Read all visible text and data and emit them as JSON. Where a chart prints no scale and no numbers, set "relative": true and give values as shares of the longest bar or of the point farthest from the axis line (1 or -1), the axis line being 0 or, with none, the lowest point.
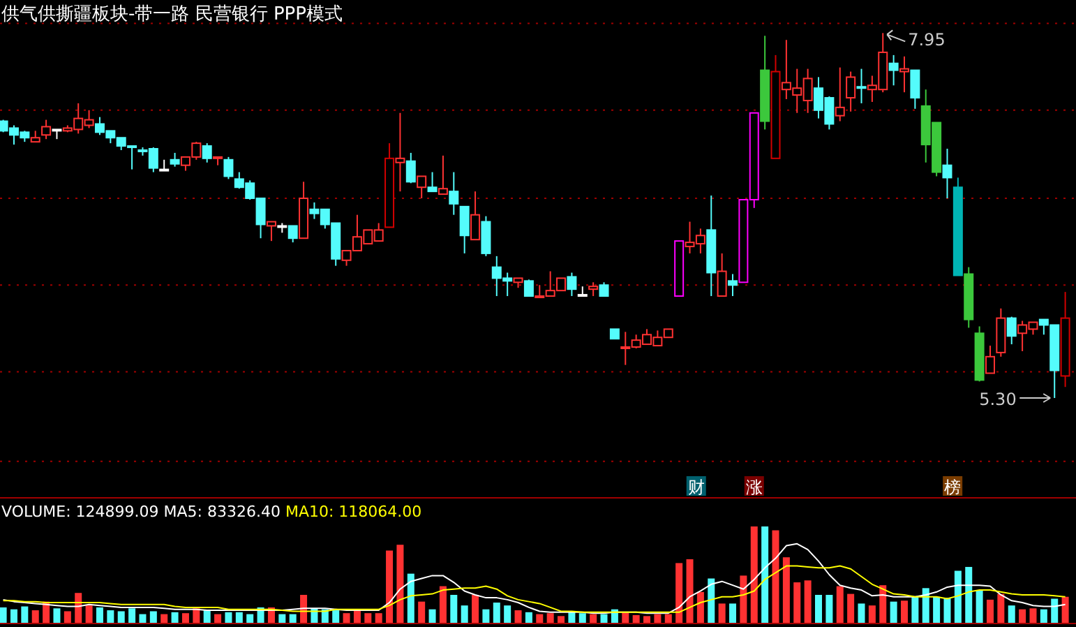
{
  "chart_data": [
    {
      "type": "candlestick",
      "title": "供气供撕疆板块-带一路 民营银行 PPP模式",
      "categories": [
        null,
        null,
        null,
        null,
        null,
        null,
        null,
        null,
        null,
        null,
        null,
        null,
        null,
        null,
        null,
        null,
        null,
        null,
        null,
        null,
        null,
        null,
        null,
        null,
        null,
        null,
        null,
        null,
        null,
        null,
        null,
        null,
        null,
        null,
        null,
        null,
        null,
        null,
        null,
        null,
        null,
        null,
        null,
        null,
        null,
        null,
        null,
        null,
        null,
        null,
        null,
        null,
        null,
        null,
        null,
        null,
        null,
        null,
        null,
        null,
        null,
        null,
        null,
        null,
        null,
        null,
        null,
        null,
        null,
        null,
        null,
        null,
        null,
        null,
        null,
        null,
        null,
        null,
        null,
        null,
        null,
        null,
        null,
        null,
        null,
        null,
        null,
        null,
        null,
        null,
        null,
        null,
        null,
        null,
        null,
        null,
        null,
        null,
        null,
        null
      ],
      "ohlc": [
        [
          7.31,
          7.32,
          7.23,
          7.24
        ],
        [
          7.26,
          7.28,
          7.14,
          7.21
        ],
        [
          7.23,
          7.24,
          7.16,
          7.19
        ],
        [
          7.16,
          7.24,
          7.16,
          7.19
        ],
        [
          7.21,
          7.32,
          7.18,
          7.27
        ],
        [
          7.25,
          7.25,
          7.18,
          7.25
        ],
        [
          7.24,
          7.28,
          7.23,
          7.26
        ],
        [
          7.25,
          7.44,
          7.22,
          7.33
        ],
        [
          7.28,
          7.39,
          7.26,
          7.32
        ],
        [
          7.29,
          7.34,
          7.21,
          7.23
        ],
        [
          7.24,
          7.24,
          7.15,
          7.19
        ],
        [
          7.19,
          7.19,
          7.1,
          7.13
        ],
        [
          7.13,
          7.13,
          6.96,
          7.12
        ],
        [
          7.1,
          7.12,
          7.06,
          7.09
        ],
        [
          7.11,
          7.12,
          6.94,
          6.97
        ],
        [
          6.96,
          7.03,
          6.95,
          6.96
        ],
        [
          7.03,
          7.08,
          6.98,
          7.0
        ],
        [
          6.99,
          7.05,
          6.95,
          7.05
        ],
        [
          7.05,
          7.16,
          7.03,
          7.15
        ],
        [
          7.13,
          7.15,
          7.01,
          7.04
        ],
        [
          7.04,
          7.05,
          6.99,
          7.05
        ],
        [
          7.03,
          7.05,
          6.89,
          6.91
        ],
        [
          6.89,
          6.94,
          6.82,
          6.83
        ],
        [
          6.86,
          6.88,
          6.74,
          6.75
        ],
        [
          6.75,
          6.75,
          6.46,
          6.56
        ],
        [
          6.55,
          6.58,
          6.44,
          6.58
        ],
        [
          6.55,
          6.57,
          6.5,
          6.55
        ],
        [
          6.55,
          6.55,
          6.43,
          6.46
        ],
        [
          6.46,
          6.87,
          6.46,
          6.75
        ],
        [
          6.67,
          6.72,
          6.6,
          6.64
        ],
        [
          6.67,
          6.67,
          6.53,
          6.56
        ],
        [
          6.57,
          6.57,
          6.26,
          6.31
        ],
        [
          6.3,
          6.37,
          6.26,
          6.37
        ],
        [
          6.37,
          6.63,
          6.37,
          6.47
        ],
        [
          6.42,
          6.52,
          6.42,
          6.52
        ],
        [
          6.44,
          6.57,
          6.44,
          6.52
        ],
        [
          6.54,
          7.15,
          6.54,
          7.04
        ],
        [
          7.01,
          7.37,
          6.8,
          7.04
        ],
        [
          7.02,
          7.08,
          6.86,
          6.87
        ],
        [
          6.83,
          6.91,
          6.75,
          6.91
        ],
        [
          6.83,
          6.94,
          6.8,
          6.8
        ],
        [
          6.78,
          7.06,
          6.78,
          6.82
        ],
        [
          6.8,
          6.94,
          6.63,
          6.71
        ],
        [
          6.69,
          6.69,
          6.35,
          6.48
        ],
        [
          6.45,
          6.8,
          6.45,
          6.63
        ],
        [
          6.58,
          6.62,
          6.33,
          6.35
        ],
        [
          6.25,
          6.33,
          6.04,
          6.17
        ],
        [
          6.17,
          6.21,
          6.04,
          6.15
        ],
        [
          6.14,
          6.17,
          6.1,
          6.17
        ],
        [
          6.15,
          6.16,
          6.04,
          6.04
        ],
        [
          6.04,
          6.12,
          6.04,
          6.04
        ],
        [
          6.04,
          6.22,
          6.04,
          6.08
        ],
        [
          6.08,
          6.17,
          6.08,
          6.17
        ],
        [
          6.18,
          6.21,
          6.04,
          6.09
        ],
        [
          6.05,
          6.11,
          6.04,
          6.05
        ],
        [
          6.09,
          6.14,
          6.04,
          6.11
        ],
        [
          6.12,
          6.14,
          6.04,
          6.04
        ],
        [
          5.8,
          5.8,
          5.73,
          5.73
        ],
        [
          5.66,
          5.78,
          5.54,
          5.67
        ],
        [
          5.67,
          5.76,
          5.66,
          5.72
        ],
        [
          5.69,
          5.8,
          5.69,
          5.76
        ],
        [
          5.68,
          5.79,
          5.68,
          5.74
        ],
        [
          5.74,
          5.8,
          5.74,
          5.8
        ],
        [
          6.04,
          6.44,
          6.04,
          6.44
        ],
        [
          6.4,
          6.58,
          6.35,
          6.43
        ],
        [
          6.42,
          6.53,
          6.35,
          6.48
        ],
        [
          6.52,
          6.77,
          6.04,
          6.21
        ],
        [
          6.04,
          6.35,
          6.04,
          6.22
        ],
        [
          6.15,
          6.2,
          6.04,
          6.12
        ],
        [
          6.14,
          6.74,
          6.14,
          6.74
        ],
        [
          6.74,
          7.37,
          6.68,
          7.37
        ],
        [
          7.68,
          7.93,
          7.25,
          7.31
        ],
        [
          7.04,
          7.79,
          7.04,
          7.67
        ],
        [
          7.54,
          7.9,
          7.47,
          7.59
        ],
        [
          7.5,
          7.69,
          7.37,
          7.55
        ],
        [
          7.46,
          7.69,
          7.37,
          7.62
        ],
        [
          7.55,
          7.63,
          7.33,
          7.39
        ],
        [
          7.48,
          7.49,
          7.25,
          7.29
        ],
        [
          7.35,
          7.7,
          7.31,
          7.41
        ],
        [
          7.48,
          7.67,
          7.38,
          7.63
        ],
        [
          7.56,
          7.69,
          7.44,
          7.56
        ],
        [
          7.54,
          7.64,
          7.45,
          7.57
        ],
        [
          7.54,
          7.95,
          7.52,
          7.81
        ],
        [
          7.73,
          7.79,
          7.57,
          7.68
        ],
        [
          7.67,
          7.78,
          7.52,
          7.69
        ],
        [
          7.68,
          7.68,
          7.4,
          7.48
        ],
        [
          7.42,
          7.54,
          7.01,
          7.14
        ],
        [
          7.3,
          7.3,
          6.91,
          6.94
        ],
        [
          6.99,
          7.11,
          6.75,
          6.9
        ],
        [
          6.83,
          6.9,
          6.19,
          6.19
        ],
        [
          6.2,
          6.25,
          5.81,
          5.87
        ],
        [
          5.77,
          5.82,
          5.42,
          5.43
        ],
        [
          5.48,
          5.68,
          5.48,
          5.6
        ],
        [
          5.63,
          5.95,
          5.6,
          5.88
        ],
        [
          5.88,
          5.89,
          5.69,
          5.75
        ],
        [
          5.77,
          5.86,
          5.64,
          5.83
        ],
        [
          5.8,
          5.85,
          5.76,
          5.85
        ],
        [
          5.87,
          5.87,
          5.76,
          5.83
        ],
        [
          5.83,
          5.83,
          5.3,
          5.5
        ],
        [
          5.46,
          6.07,
          5.38,
          5.88
        ]
      ],
      "colors": [
        "#54fcfc",
        "#54fcfc",
        "#54fcfc",
        "#ff3232",
        "#ff3232",
        "#ffffff",
        "#ff3232",
        "#ff3232",
        "#ff3232",
        "#54fcfc",
        "#54fcfc",
        "#54fcfc",
        "#54fcfc",
        "#54fcfc",
        "#54fcfc",
        "#ffffff",
        "#54fcfc",
        "#ff3232",
        "#ff3232",
        "#54fcfc",
        "#ff3232",
        "#54fcfc",
        "#54fcfc",
        "#54fcfc",
        "#54fcfc",
        "#ff3232",
        "#ffffff",
        "#54fcfc",
        "#ff3232",
        "#54fcfc",
        "#54fcfc",
        "#54fcfc",
        "#ff3232",
        "#ff3232",
        "#ff3232",
        "#ff3232",
        "#d20000",
        "#ff3232",
        "#54fcfc",
        "#ff3232",
        "#54fcfc",
        "#ff3232",
        "#54fcfc",
        "#54fcfc",
        "#ff3232",
        "#54fcfc",
        "#54fcfc",
        "#54fcfc",
        "#ff3232",
        "#54fcfc",
        "#ff3232",
        "#ff3232",
        "#ff3232",
        "#54fcfc",
        "#ffffff",
        "#ff3232",
        "#54fcfc",
        "#54fcfc",
        "#ff3232",
        "#ff3232",
        "#ff3232",
        "#ff3232",
        "#ff3232",
        "#ff00ff",
        "#ff3232",
        "#ff3232",
        "#54fcfc",
        "#ff3232",
        "#54fcfc",
        "#ff00ff",
        "#ff00ff",
        "#3cc83c",
        "#d20000",
        "#ff3232",
        "#ff3232",
        "#ff3232",
        "#54fcfc",
        "#54fcfc",
        "#ff3232",
        "#ff3232",
        "#54fcfc",
        "#ff3232",
        "#ff3232",
        "#54fcfc",
        "#ff3232",
        "#54fcfc",
        "#3cc83c",
        "#3cc83c",
        "#54fcfc",
        "#00b4b4",
        "#3cc83c",
        "#3cc83c",
        "#ff3232",
        "#ff3232",
        "#54fcfc",
        "#ff3232",
        "#ff3232",
        "#54fcfc",
        "#54fcfc",
        "#d20000"
      ],
      "ylim": [
        4.58,
        8.19
      ],
      "yticks": [
        {
          "value": 8.02,
          "label": null
        },
        {
          "value": 7.39,
          "label": null
        },
        {
          "value": 6.75,
          "label": null
        },
        {
          "value": 6.12,
          "label": null
        },
        {
          "value": 5.49,
          "label": null
        },
        {
          "value": 4.84,
          "label": null
        }
      ],
      "grid": true,
      "annotations": [
        "7.95",
        "5.30",
        "财",
        "涨",
        "榜"
      ]
    },
    {
      "type": "bar",
      "relative": true,
      "categories": [
        null,
        null,
        null,
        null,
        null,
        null,
        null,
        null,
        null,
        null,
        null,
        null,
        null,
        null,
        null,
        null,
        null,
        null,
        null,
        null,
        null,
        null,
        null,
        null,
        null,
        null,
        null,
        null,
        null,
        null,
        null,
        null,
        null,
        null,
        null,
        null,
        null,
        null,
        null,
        null,
        null,
        null,
        null,
        null,
        null,
        null,
        null,
        null,
        null,
        null,
        null,
        null,
        null,
        null,
        null,
        null,
        null,
        null,
        null,
        null,
        null,
        null,
        null,
        null,
        null,
        null,
        null,
        null,
        null,
        null,
        null,
        null,
        null,
        null,
        null,
        null,
        null,
        null,
        null,
        null,
        null,
        null,
        null,
        null,
        null,
        null,
        null,
        null,
        null,
        null,
        null,
        null,
        null,
        null,
        null,
        null,
        null,
        null,
        null,
        null
      ],
      "series": [
        {
          "name": "VOLUME:",
          "values": [
            0.16,
            0.14,
            0.17,
            0.13,
            0.22,
            0.15,
            0.12,
            0.31,
            0.18,
            0.16,
            0.13,
            0.12,
            0.15,
            0.09,
            0.12,
            0.09,
            0.11,
            0.1,
            0.15,
            0.13,
            0.09,
            0.11,
            0.11,
            0.09,
            0.16,
            0.16,
            0.09,
            0.09,
            0.29,
            0.15,
            0.14,
            0.13,
            0.1,
            0.13,
            0.1,
            0.1,
            0.75,
            0.81,
            0.51,
            0.22,
            0.14,
            0.38,
            0.29,
            0.18,
            0.29,
            0.14,
            0.21,
            0.18,
            0.13,
            0.11,
            0.09,
            0.1,
            0.07,
            0.11,
            0.1,
            0.09,
            0.09,
            0.14,
            0.11,
            0.08,
            0.07,
            0.09,
            0.09,
            0.62,
            0.66,
            0.32,
            0.46,
            0.2,
            0.2,
            0.49,
            1,
            1,
            0.96,
            0.68,
            0.42,
            0.44,
            0.29,
            0.29,
            0.38,
            0.3,
            0.2,
            0.18,
            0.39,
            0.22,
            0.23,
            0.27,
            0.36,
            0.27,
            0.26,
            0.54,
            0.58,
            0.34,
            0.24,
            0.3,
            0.18,
            0.14,
            0.15,
            0.14,
            0.25,
            0.27
          ],
          "colors": [
            "#54fcfc",
            "#54fcfc",
            "#54fcfc",
            "#ff3232",
            "#ff3232",
            "#54fcfc",
            "#ff3232",
            "#ff3232",
            "#ff3232",
            "#54fcfc",
            "#54fcfc",
            "#54fcfc",
            "#54fcfc",
            "#54fcfc",
            "#54fcfc",
            "#ff3232",
            "#54fcfc",
            "#ff3232",
            "#ff3232",
            "#54fcfc",
            "#ff3232",
            "#54fcfc",
            "#54fcfc",
            "#54fcfc",
            "#54fcfc",
            "#ff3232",
            "#54fcfc",
            "#54fcfc",
            "#ff3232",
            "#54fcfc",
            "#54fcfc",
            "#54fcfc",
            "#ff3232",
            "#ff3232",
            "#ff3232",
            "#ff3232",
            "#ff3232",
            "#ff3232",
            "#54fcfc",
            "#ff3232",
            "#54fcfc",
            "#ff3232",
            "#54fcfc",
            "#54fcfc",
            "#ff3232",
            "#54fcfc",
            "#54fcfc",
            "#54fcfc",
            "#ff3232",
            "#54fcfc",
            "#ff3232",
            "#ff3232",
            "#ff3232",
            "#54fcfc",
            "#54fcfc",
            "#ff3232",
            "#54fcfc",
            "#54fcfc",
            "#ff3232",
            "#ff3232",
            "#ff3232",
            "#ff3232",
            "#ff3232",
            "#ff3232",
            "#ff3232",
            "#ff3232",
            "#54fcfc",
            "#ff3232",
            "#54fcfc",
            "#ff3232",
            "#ff3232",
            "#54fcfc",
            "#ff3232",
            "#ff3232",
            "#ff3232",
            "#ff3232",
            "#54fcfc",
            "#54fcfc",
            "#ff3232",
            "#ff3232",
            "#54fcfc",
            "#ff3232",
            "#ff3232",
            "#54fcfc",
            "#ff3232",
            "#54fcfc",
            "#54fcfc",
            "#54fcfc",
            "#54fcfc",
            "#54fcfc",
            "#54fcfc",
            "#54fcfc",
            "#ff3232",
            "#ff3232",
            "#54fcfc",
            "#ff3232",
            "#ff3232",
            "#54fcfc",
            "#54fcfc",
            "#ff3232"
          ]
        },
        {
          "name": "MA5:",
          "type": "line",
          "color": "#ffffff",
          "values": [
            0.24,
            0.22,
            0.21,
            0.2,
            0.19,
            0.18,
            0.17,
            0.17,
            0.19,
            0.18,
            0.17,
            0.16,
            0.16,
            0.16,
            0.16,
            0.15,
            0.14,
            0.14,
            0.14,
            0.13,
            0.13,
            0.13,
            0.13,
            0.13,
            0.13,
            0.13,
            0.13,
            0.14,
            0.15,
            0.15,
            0.15,
            0.14,
            0.13,
            0.13,
            0.13,
            0.13,
            0.21,
            0.35,
            0.43,
            0.46,
            0.49,
            0.49,
            0.42,
            0.33,
            0.29,
            0.26,
            0.26,
            0.24,
            0.21,
            0.16,
            0.12,
            0.11,
            0.11,
            0.11,
            0.11,
            0.1,
            0.1,
            0.11,
            0.11,
            0.11,
            0.1,
            0.1,
            0.1,
            0.16,
            0.27,
            0.33,
            0.4,
            0.43,
            0.39,
            0.35,
            0.45,
            0.57,
            0.67,
            0.8,
            0.82,
            0.76,
            0.64,
            0.5,
            0.39,
            0.36,
            0.34,
            0.28,
            0.29,
            0.27,
            0.27,
            0.27,
            0.29,
            0.32,
            0.37,
            0.39,
            0.39,
            0.39,
            0.38,
            0.29,
            0.23,
            0.21,
            0.18,
            0.17,
            0.17,
            0.19
          ]
        },
        {
          "name": "MA10:",
          "type": "line",
          "color": "#ffff00",
          "values": [
            0.23,
            0.23,
            0.22,
            0.22,
            0.21,
            0.21,
            0.21,
            0.21,
            0.21,
            0.21,
            0.2,
            0.19,
            0.19,
            0.19,
            0.19,
            0.19,
            0.17,
            0.16,
            0.16,
            0.16,
            0.16,
            0.14,
            0.14,
            0.14,
            0.14,
            0.14,
            0.13,
            0.12,
            0.12,
            0.12,
            0.12,
            0.14,
            0.14,
            0.14,
            0.14,
            0.14,
            0.18,
            0.24,
            0.28,
            0.29,
            0.3,
            0.34,
            0.35,
            0.36,
            0.36,
            0.38,
            0.35,
            0.28,
            0.24,
            0.22,
            0.2,
            0.16,
            0.12,
            0.12,
            0.11,
            0.11,
            0.11,
            0.11,
            0.11,
            0.11,
            0.11,
            0.11,
            0.11,
            0.11,
            0.16,
            0.21,
            0.24,
            0.27,
            0.27,
            0.29,
            0.33,
            0.45,
            0.52,
            0.59,
            0.59,
            0.58,
            0.57,
            0.57,
            0.59,
            0.56,
            0.48,
            0.4,
            0.35,
            0.3,
            0.29,
            0.27,
            0.27,
            0.27,
            0.25,
            0.28,
            0.32,
            0.34,
            0.34,
            0.32,
            0.3,
            0.29,
            0.29,
            0.29,
            0.28,
            0.27
          ]
        }
      ],
      "annotations": [
        "124899.09",
        "83326.40",
        "118064.00"
      ]
    }
  ]
}
